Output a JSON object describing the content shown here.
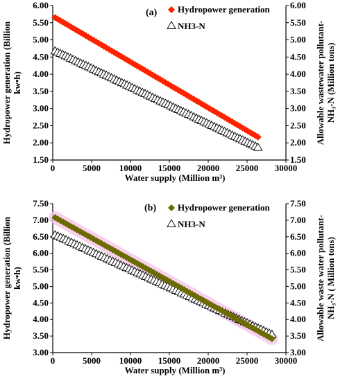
{
  "chart_data": [
    {
      "type": "scatter",
      "panel_label": "(a)",
      "xlabel": "Water supply (Million m³)",
      "ylabel_left": [
        "Hydropower generation  (Billion",
        "kw•h)"
      ],
      "ylabel_right": [
        "Allowable wastewater pollutant-",
        "NH₃-N (Million tons)"
      ],
      "xlim": [
        0,
        30000
      ],
      "xticks": [
        "0",
        "5000",
        "10000",
        "15000",
        "20000",
        "25000",
        "30000"
      ],
      "ylim_left": [
        1.5,
        6.0
      ],
      "yticks_left": [
        "1.50",
        "2.00",
        "2.50",
        "3.00",
        "3.50",
        "4.00",
        "4.50",
        "5.00",
        "5.50",
        "6.00"
      ],
      "ylim_right": [
        1.5,
        6.0
      ],
      "yticks_right": [
        "1.50",
        "2.00",
        "2.50",
        "3.00",
        "3.50",
        "4.00",
        "4.50",
        "5.00",
        "5.50",
        "6.00"
      ],
      "legend_position": "top-right",
      "series": [
        {
          "name": "Hydropower generation",
          "marker": "diamond",
          "color": "#ff2200",
          "x_start": 300,
          "x_end": 26400,
          "y_start": 5.65,
          "y_end": 2.17,
          "n_points": 80
        },
        {
          "name": "NH3-N",
          "marker": "triangle-open",
          "color": "#000000",
          "x_start": 300,
          "x_end": 26400,
          "y_start": 4.68,
          "y_end": 1.87,
          "n_points": 80
        }
      ]
    },
    {
      "type": "scatter",
      "panel_label": "(b)",
      "xlabel": "Water supply (Million m³)",
      "ylabel_left": [
        "Hydropower generation  (Billion",
        "kw•h)"
      ],
      "ylabel_right": [
        "Allowable waste  water pollutant-",
        "NH₃-N ( Million tons)"
      ],
      "xlim": [
        0,
        30000
      ],
      "xticks": [
        "0",
        "5000",
        "10000",
        "15000",
        "20000",
        "25000",
        "30000"
      ],
      "ylim_left": [
        3.0,
        7.5
      ],
      "yticks_left": [
        "3.00",
        "3.50",
        "4.00",
        "4.50",
        "5.00",
        "5.50",
        "6.00",
        "6.50",
        "7.00",
        "7.50"
      ],
      "ylim_right": [
        3.0,
        7.5
      ],
      "yticks_right": [
        "3.00",
        "3.50",
        "4.00",
        "4.50",
        "5.00",
        "5.50",
        "6.00",
        "6.50",
        "7.00",
        "7.50"
      ],
      "legend_position": "top-right",
      "series": [
        {
          "name": "Hydropower generation",
          "marker": "diamond",
          "color": "#6b6b00",
          "x_start": 300,
          "x_end": 28200,
          "y_start": 7.08,
          "y_end": 3.42,
          "n_points": 80
        },
        {
          "name": "NH3-N",
          "marker": "triangle-open",
          "color": "#000000",
          "x_start": 300,
          "x_end": 28200,
          "y_start": 6.56,
          "y_end": 3.55,
          "n_points": 80
        }
      ]
    }
  ]
}
